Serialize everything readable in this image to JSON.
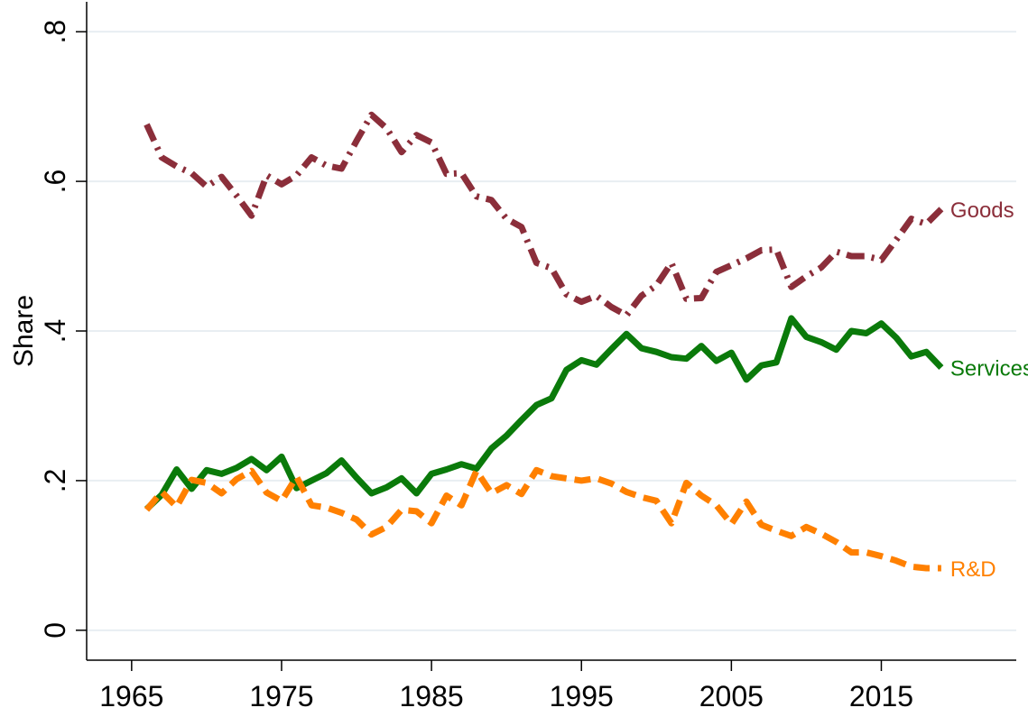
{
  "chart_data": {
    "type": "line",
    "title": "",
    "xlabel": "",
    "ylabel": "Share",
    "xlim": [
      1962,
      2024
    ],
    "ylim": [
      -0.04,
      0.84
    ],
    "x_ticks": [
      1965,
      1975,
      1985,
      1995,
      2005,
      2015
    ],
    "x_tick_labels": [
      "1965",
      "1975",
      "1985",
      "1995",
      "2005",
      "2015"
    ],
    "y_ticks": [
      0,
      0.2,
      0.4,
      0.6,
      0.8
    ],
    "y_tick_labels": [
      "0",
      ".2",
      ".4",
      ".6",
      ".8"
    ],
    "grid": "horizontal",
    "legend": "direct labels at line ends",
    "x": [
      1966,
      1967,
      1968,
      1969,
      1970,
      1971,
      1972,
      1973,
      1974,
      1975,
      1976,
      1977,
      1978,
      1979,
      1980,
      1981,
      1982,
      1983,
      1984,
      1985,
      1986,
      1987,
      1988,
      1989,
      1990,
      1991,
      1992,
      1993,
      1994,
      1995,
      1996,
      1997,
      1998,
      1999,
      2000,
      2001,
      2002,
      2003,
      2004,
      2005,
      2006,
      2007,
      2008,
      2009,
      2010,
      2011,
      2012,
      2013,
      2014,
      2015,
      2016,
      2017,
      2018,
      2019
    ],
    "series": [
      {
        "name": "Goods",
        "color": "#8b2e3a",
        "style": "dash-dot",
        "values": [
          0.676,
          0.632,
          0.62,
          0.611,
          0.593,
          0.606,
          0.581,
          0.554,
          0.608,
          0.596,
          0.608,
          0.632,
          0.621,
          0.617,
          0.654,
          0.689,
          0.671,
          0.639,
          0.662,
          0.652,
          0.61,
          0.611,
          0.58,
          0.575,
          0.55,
          0.539,
          0.491,
          0.484,
          0.449,
          0.439,
          0.447,
          0.432,
          0.421,
          0.447,
          0.461,
          0.491,
          0.443,
          0.444,
          0.479,
          0.488,
          0.497,
          0.508,
          0.509,
          0.459,
          0.473,
          0.485,
          0.506,
          0.5,
          0.5,
          0.495,
          0.522,
          0.55,
          0.543,
          0.563
        ]
      },
      {
        "name": "Services",
        "color": "#0a7a0a",
        "style": "solid",
        "values": [
          0.162,
          0.181,
          0.215,
          0.189,
          0.214,
          0.209,
          0.217,
          0.229,
          0.214,
          0.232,
          0.19,
          0.2,
          0.21,
          0.227,
          0.204,
          0.183,
          0.191,
          0.203,
          0.183,
          0.209,
          0.215,
          0.222,
          0.216,
          0.243,
          0.26,
          0.281,
          0.301,
          0.31,
          0.348,
          0.361,
          0.355,
          0.376,
          0.396,
          0.377,
          0.372,
          0.365,
          0.363,
          0.38,
          0.36,
          0.371,
          0.335,
          0.354,
          0.358,
          0.417,
          0.392,
          0.385,
          0.375,
          0.4,
          0.397,
          0.41,
          0.391,
          0.366,
          0.372,
          0.351
        ]
      },
      {
        "name": "R&D",
        "color": "#ff8000",
        "style": "dashed",
        "values": [
          0.161,
          0.185,
          0.165,
          0.201,
          0.197,
          0.183,
          0.202,
          0.213,
          0.184,
          0.173,
          0.205,
          0.167,
          0.164,
          0.157,
          0.148,
          0.128,
          0.138,
          0.161,
          0.159,
          0.143,
          0.18,
          0.167,
          0.213,
          0.183,
          0.194,
          0.182,
          0.214,
          0.206,
          0.203,
          0.2,
          0.203,
          0.196,
          0.185,
          0.178,
          0.173,
          0.143,
          0.197,
          0.18,
          0.167,
          0.142,
          0.172,
          0.141,
          0.133,
          0.126,
          0.138,
          0.129,
          0.118,
          0.104,
          0.104,
          0.099,
          0.093,
          0.085,
          0.083,
          0.083
        ]
      }
    ]
  }
}
